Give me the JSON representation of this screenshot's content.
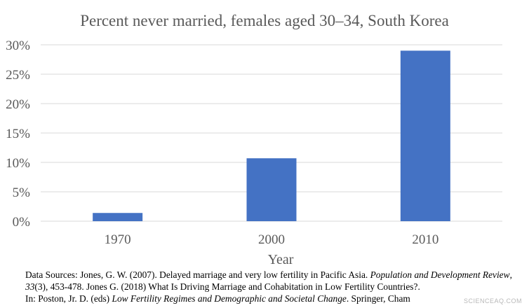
{
  "chart_data": {
    "type": "bar",
    "title": "Percent never married, females aged 30–34, South Korea",
    "xlabel": "Year",
    "ylabel": "",
    "categories": [
      "1970",
      "2000",
      "2010"
    ],
    "values": [
      1.4,
      10.7,
      29.0
    ],
    "ylim": [
      0,
      30
    ],
    "yticks": [
      0,
      5,
      10,
      15,
      20,
      25,
      30
    ],
    "ytick_labels": [
      "0%",
      "5%",
      "10%",
      "15%",
      "20%",
      "25%",
      "30%"
    ],
    "grid": true,
    "legend": "none",
    "bar_color": "#4472c4"
  },
  "footer": {
    "line1_a": "Data Sources: Jones, G. W. (2007). Delayed marriage and very low fertility in Pacific Asia. ",
    "line1_journal": "Population and Development Review",
    "line1_b": ", ",
    "line1_volume": "33",
    "line1_c": "(3), 453-478.  Jones G. (2018) What Is Driving Marriage and Cohabitation in Low Fertility Countries?.",
    "line2_a": "In: Poston, Jr. D. (eds) ",
    "line2_book": "Low Fertility Regimes and Demographic and Societal Change",
    "line2_b": ". Springer, Cham"
  },
  "watermark": "SCIENCEAQ.COM"
}
